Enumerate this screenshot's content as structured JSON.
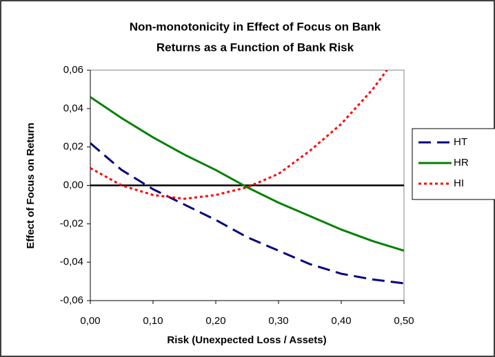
{
  "chart_data": {
    "type": "line",
    "title": [
      "Non-monotonicity in Effect of Focus on Bank",
      "Returns as a Function of Bank Risk"
    ],
    "x_label": "Risk (Unexpected Loss / Assets)",
    "y_label": "Effect of Focus on Return",
    "x": [
      0,
      0.05,
      0.1,
      0.15,
      0.2,
      0.25,
      0.3,
      0.35,
      0.4,
      0.45,
      0.5
    ],
    "series": [
      {
        "name": "HT",
        "color": "#000080",
        "dash": "18 9",
        "values": [
          0.022,
          0.008,
          -0.002,
          -0.01,
          -0.018,
          -0.027,
          -0.034,
          -0.041,
          -0.046,
          -0.049,
          -0.051
        ]
      },
      {
        "name": "HR",
        "color": "#008000",
        "dash": "none",
        "values": [
          0.046,
          0.035,
          0.025,
          0.016,
          0.008,
          -0.001,
          -0.009,
          -0.016,
          -0.023,
          -0.029,
          -0.034
        ]
      },
      {
        "name": "HI",
        "color": "#ff0000",
        "dash": "4 4",
        "values": [
          0.009,
          0.0,
          -0.005,
          -0.007,
          -0.005,
          -0.001,
          0.006,
          0.018,
          0.032,
          0.05,
          0.072
        ]
      }
    ],
    "xlim": [
      0,
      0.5
    ],
    "xticks": [
      {
        "value": 0,
        "label": "0,00"
      },
      {
        "value": 0.1,
        "label": "0,10"
      },
      {
        "value": 0.2,
        "label": "0,20"
      },
      {
        "value": 0.3,
        "label": "0,30"
      },
      {
        "value": 0.4,
        "label": "0,40"
      },
      {
        "value": 0.5,
        "label": "0,50"
      }
    ],
    "ylim": [
      -0.06,
      0.06
    ],
    "yticks": [
      {
        "value": -0.06,
        "label": "-0,06"
      },
      {
        "value": -0.04,
        "label": "-0,04"
      },
      {
        "value": -0.02,
        "label": "-0,02"
      },
      {
        "value": 0,
        "label": "0,00"
      },
      {
        "value": 0.02,
        "label": "0,02"
      },
      {
        "value": 0.04,
        "label": "0,04"
      },
      {
        "value": 0.06,
        "label": "0,06"
      }
    ],
    "legend": "right"
  }
}
